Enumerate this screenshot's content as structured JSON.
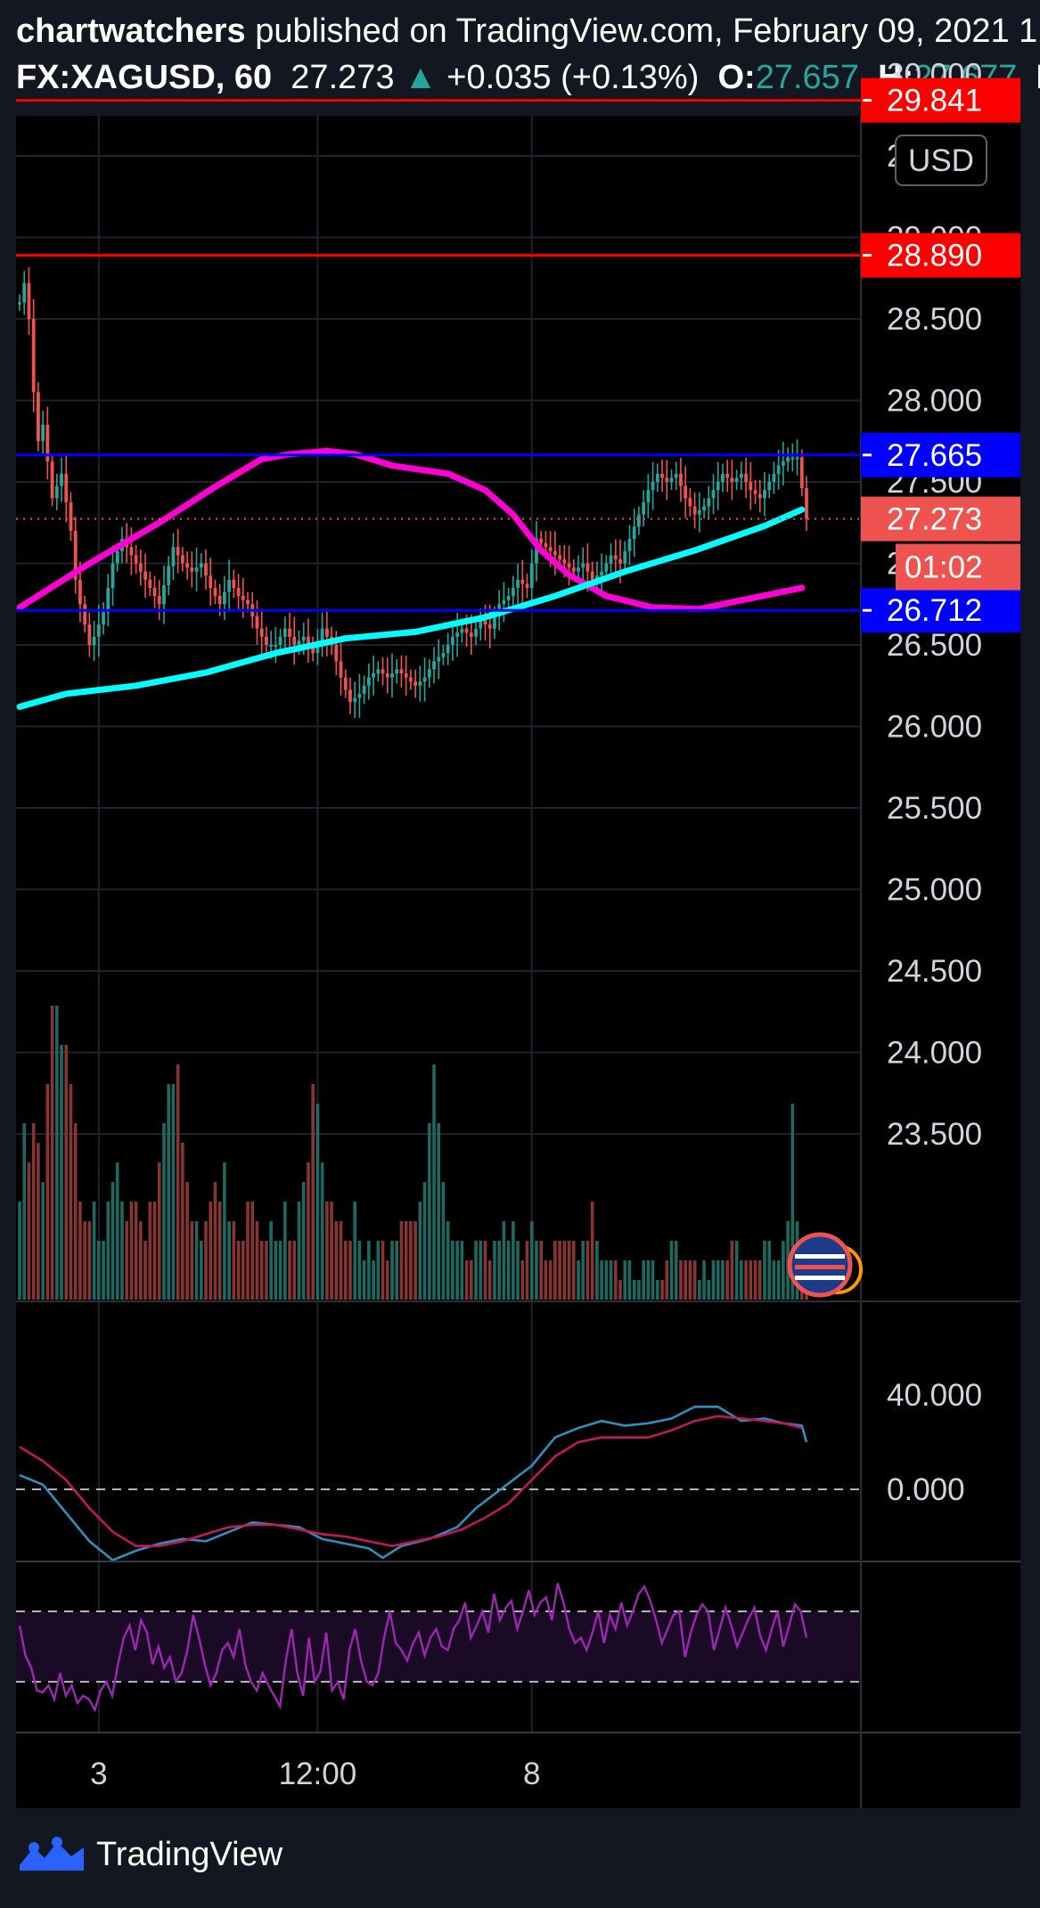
{
  "header": {
    "author": "chartwatchers",
    "published": "published on TradingView.com, February 09, 2021 1",
    "symbol": "FX:XAGUSD, 60",
    "last": "27.273",
    "change_arrow": "▲",
    "change": "+0.035 (+0.13%)",
    "o_label": "O:",
    "o_value": "27.657",
    "h_label": "H:",
    "h_value": "27.677",
    "l_label": "L:",
    "l_value": "2"
  },
  "currency_button": "USD",
  "footer": {
    "brand": "TradingView"
  },
  "colors": {
    "background": "#131722",
    "pane": "#000000",
    "up": "#26a69a",
    "down": "#ef5350",
    "resistance": "#ff0000",
    "support": "#0000ff",
    "ma_fast": "#ff00d4",
    "ma_slow": "#00ffff",
    "macd": "#2e8fbf",
    "signal": "#c2185b",
    "rsi": "#9c27b0"
  },
  "chart_data": [
    {
      "type": "candlestick",
      "symbol": "FX:XAGUSD",
      "interval": "60",
      "currency": "USD",
      "y_ticks": [
        "30.000",
        "29.500",
        "29.000",
        "28.500",
        "28.000",
        "27.500",
        "27.000",
        "26.500",
        "26.000",
        "25.500",
        "25.000",
        "24.500",
        "24.000",
        "23.500"
      ],
      "y_tick_values": [
        30.0,
        29.5,
        29.0,
        28.5,
        28.0,
        27.5,
        27.0,
        26.5,
        26.0,
        25.5,
        25.0,
        24.5,
        24.0,
        23.5
      ],
      "ylim": [
        23.5,
        30.2
      ],
      "x_ticks": [
        "3",
        "12:00",
        "8"
      ],
      "x_tick_values": [
        17,
        64,
        110
      ],
      "bars": 170,
      "close_path": [
        [
          0,
          28.6
        ],
        [
          1,
          28.72
        ],
        [
          2,
          28.5
        ],
        [
          3,
          28.05
        ],
        [
          4,
          27.75
        ],
        [
          5,
          27.85
        ],
        [
          7,
          27.4
        ],
        [
          9,
          27.55
        ],
        [
          11,
          27.2
        ],
        [
          12,
          26.9
        ],
        [
          13,
          26.75
        ],
        [
          15,
          26.5
        ],
        [
          16,
          26.55
        ],
        [
          18,
          26.7
        ],
        [
          20,
          27.0
        ],
        [
          22,
          27.15
        ],
        [
          24,
          27.05
        ],
        [
          26,
          26.95
        ],
        [
          28,
          26.85
        ],
        [
          30,
          26.75
        ],
        [
          33,
          27.1
        ],
        [
          35,
          27.0
        ],
        [
          37,
          26.95
        ],
        [
          39,
          27.0
        ],
        [
          41,
          26.85
        ],
        [
          43,
          26.75
        ],
        [
          45,
          26.9
        ],
        [
          47,
          26.8
        ],
        [
          49,
          26.75
        ],
        [
          51,
          26.6
        ],
        [
          53,
          26.5
        ],
        [
          55,
          26.5
        ],
        [
          57,
          26.6
        ],
        [
          59,
          26.5
        ],
        [
          61,
          26.55
        ],
        [
          63,
          26.45
        ],
        [
          65,
          26.6
        ],
        [
          67,
          26.5
        ],
        [
          69,
          26.3
        ],
        [
          71,
          26.15
        ],
        [
          73,
          26.2
        ],
        [
          75,
          26.3
        ],
        [
          77,
          26.35
        ],
        [
          79,
          26.3
        ],
        [
          81,
          26.35
        ],
        [
          83,
          26.3
        ],
        [
          85,
          26.25
        ],
        [
          87,
          26.3
        ],
        [
          89,
          26.4
        ],
        [
          91,
          26.45
        ],
        [
          93,
          26.55
        ],
        [
          95,
          26.6
        ],
        [
          97,
          26.55
        ],
        [
          99,
          26.65
        ],
        [
          101,
          26.6
        ],
        [
          103,
          26.75
        ],
        [
          105,
          26.8
        ],
        [
          107,
          26.9
        ],
        [
          109,
          26.85
        ],
        [
          111,
          27.15
        ],
        [
          113,
          27.1
        ],
        [
          115,
          27.05
        ],
        [
          117,
          27.0
        ],
        [
          119,
          26.95
        ],
        [
          121,
          27.0
        ],
        [
          123,
          26.9
        ],
        [
          125,
          26.95
        ],
        [
          127,
          27.05
        ],
        [
          129,
          27.0
        ],
        [
          131,
          27.15
        ],
        [
          133,
          27.3
        ],
        [
          135,
          27.45
        ],
        [
          137,
          27.55
        ],
        [
          139,
          27.5
        ],
        [
          141,
          27.55
        ],
        [
          143,
          27.4
        ],
        [
          145,
          27.3
        ],
        [
          147,
          27.35
        ],
        [
          149,
          27.45
        ],
        [
          151,
          27.55
        ],
        [
          153,
          27.5
        ],
        [
          155,
          27.55
        ],
        [
          157,
          27.45
        ],
        [
          159,
          27.4
        ],
        [
          161,
          27.5
        ],
        [
          163,
          27.6
        ],
        [
          165,
          27.65
        ],
        [
          167,
          27.65
        ],
        [
          169,
          27.273
        ]
      ],
      "horizontal_levels": [
        {
          "label": "29.841",
          "value": 29.841,
          "color": "#ff0000"
        },
        {
          "label": "28.890",
          "value": 28.89,
          "color": "#ff0000"
        },
        {
          "label": "27.665",
          "value": 27.665,
          "color": "#0000ff"
        },
        {
          "label": "26.712",
          "value": 26.712,
          "color": "#0000ff"
        }
      ],
      "last_price": {
        "label": "27.273",
        "value": 27.273,
        "countdown": "01:02"
      },
      "moving_averages": [
        {
          "color": "#ff00d4",
          "points": [
            [
              0,
              26.73
            ],
            [
              15,
              27.0
            ],
            [
              30,
              27.25
            ],
            [
              42,
              27.47
            ],
            [
              52,
              27.64
            ],
            [
              58,
              27.67
            ],
            [
              66,
              27.69
            ],
            [
              72,
              27.67
            ],
            [
              80,
              27.6
            ],
            [
              92,
              27.55
            ],
            [
              100,
              27.45
            ],
            [
              106,
              27.3
            ],
            [
              112,
              27.08
            ],
            [
              118,
              26.93
            ],
            [
              126,
              26.8
            ],
            [
              136,
              26.73
            ],
            [
              146,
              26.72
            ],
            [
              156,
              26.78
            ],
            [
              168,
              26.85
            ]
          ]
        },
        {
          "color": "#00ffff",
          "points": [
            [
              0,
              26.12
            ],
            [
              10,
              26.2
            ],
            [
              25,
              26.25
            ],
            [
              40,
              26.33
            ],
            [
              55,
              26.45
            ],
            [
              70,
              26.54
            ],
            [
              85,
              26.58
            ],
            [
              100,
              26.67
            ],
            [
              115,
              26.8
            ],
            [
              130,
              26.95
            ],
            [
              145,
              27.08
            ],
            [
              160,
              27.23
            ],
            [
              168,
              27.33
            ]
          ]
        }
      ]
    },
    {
      "type": "bar",
      "name": "volume",
      "values": [
        5,
        9,
        7,
        9,
        8,
        6,
        11,
        15,
        15,
        13,
        13,
        11,
        9,
        5,
        4,
        4,
        5,
        3,
        3,
        5,
        6,
        7,
        5,
        4,
        5,
        5,
        4,
        3,
        5,
        5,
        7,
        9,
        11,
        11,
        12,
        8,
        6,
        4,
        4,
        3,
        4,
        5,
        6,
        5,
        7,
        4,
        4,
        3,
        3,
        5,
        5,
        4,
        3,
        3,
        4,
        3,
        3,
        5,
        3,
        3,
        5,
        6,
        7,
        11,
        10,
        7,
        5,
        5,
        4,
        4,
        3,
        3,
        5,
        3,
        2,
        3,
        2,
        3,
        3,
        2,
        3,
        3,
        4,
        4,
        4,
        4,
        5,
        6,
        9,
        12,
        9,
        6,
        4,
        3,
        3,
        3,
        2,
        2,
        3,
        3,
        3,
        2,
        3,
        3,
        4,
        3,
        4,
        3,
        2,
        3,
        4,
        3,
        3,
        2,
        2,
        3,
        3,
        3,
        3,
        3,
        2,
        3,
        3,
        5,
        3,
        2,
        2,
        2,
        2,
        1,
        2,
        2,
        1,
        1,
        2,
        2,
        2,
        1,
        1,
        2,
        3,
        3,
        2,
        2,
        2,
        2,
        1,
        2,
        1,
        2,
        2,
        2,
        2,
        3,
        3,
        2,
        2,
        2,
        2,
        2,
        3,
        3,
        2,
        2,
        3,
        4,
        10,
        4,
        2,
        3
      ],
      "max_value": 15
    },
    {
      "type": "line",
      "name": "macd",
      "y_ticks": [
        "40.000",
        "0.000"
      ],
      "y_tick_values": [
        40,
        0
      ],
      "ylim": [
        -30,
        60
      ],
      "series": [
        {
          "color": "#2e8fbf",
          "points": [
            [
              0,
              6
            ],
            [
              5,
              2
            ],
            [
              10,
              -10
            ],
            [
              15,
              -22
            ],
            [
              20,
              -30
            ],
            [
              25,
              -26
            ],
            [
              30,
              -23
            ],
            [
              35,
              -21
            ],
            [
              40,
              -22
            ],
            [
              45,
              -18
            ],
            [
              50,
              -14
            ],
            [
              55,
              -15
            ],
            [
              60,
              -16
            ],
            [
              65,
              -21
            ],
            [
              70,
              -23
            ],
            [
              75,
              -25
            ],
            [
              78,
              -29
            ],
            [
              82,
              -24
            ],
            [
              88,
              -21
            ],
            [
              94,
              -16
            ],
            [
              98,
              -8
            ],
            [
              104,
              1
            ],
            [
              110,
              10
            ],
            [
              115,
              22
            ],
            [
              120,
              26
            ],
            [
              125,
              29
            ],
            [
              130,
              27
            ],
            [
              135,
              28
            ],
            [
              140,
              30
            ],
            [
              145,
              35
            ],
            [
              150,
              35
            ],
            [
              155,
              29
            ],
            [
              160,
              30
            ],
            [
              164,
              28
            ],
            [
              168,
              27
            ],
            [
              169,
              20
            ]
          ]
        },
        {
          "color": "#c2185b",
          "points": [
            [
              0,
              18
            ],
            [
              5,
              12
            ],
            [
              10,
              4
            ],
            [
              15,
              -8
            ],
            [
              20,
              -18
            ],
            [
              25,
              -24
            ],
            [
              30,
              -24
            ],
            [
              35,
              -22
            ],
            [
              40,
              -19
            ],
            [
              45,
              -16
            ],
            [
              50,
              -15
            ],
            [
              55,
              -15
            ],
            [
              60,
              -17
            ],
            [
              65,
              -19
            ],
            [
              70,
              -20
            ],
            [
              75,
              -22
            ],
            [
              80,
              -24
            ],
            [
              85,
              -22
            ],
            [
              90,
              -20
            ],
            [
              95,
              -17
            ],
            [
              100,
              -12
            ],
            [
              105,
              -6
            ],
            [
              110,
              4
            ],
            [
              115,
              14
            ],
            [
              120,
              20
            ],
            [
              125,
              22
            ],
            [
              130,
              22
            ],
            [
              135,
              22
            ],
            [
              140,
              25
            ],
            [
              145,
              29
            ],
            [
              150,
              31
            ],
            [
              155,
              30
            ],
            [
              160,
              29
            ],
            [
              164,
              28
            ],
            [
              168,
              26
            ]
          ]
        }
      ]
    },
    {
      "type": "line",
      "name": "rsi",
      "color": "#9c27b0",
      "band": [
        30,
        70
      ],
      "ylim": [
        10,
        90
      ],
      "values": [
        62,
        45,
        38,
        25,
        24,
        28,
        20,
        35,
        22,
        28,
        18,
        22,
        20,
        14,
        25,
        30,
        22,
        40,
        55,
        62,
        48,
        65,
        58,
        40,
        50,
        38,
        44,
        30,
        35,
        48,
        68,
        55,
        40,
        28,
        35,
        48,
        52,
        44,
        60,
        40,
        30,
        25,
        35,
        28,
        22,
        16,
        42,
        60,
        35,
        22,
        55,
        30,
        36,
        58,
        25,
        30,
        20,
        48,
        60,
        42,
        30,
        28,
        35,
        55,
        70,
        52,
        48,
        42,
        52,
        58,
        45,
        55,
        60,
        50,
        48,
        60,
        65,
        75,
        55,
        62,
        70,
        58,
        80,
        65,
        72,
        76,
        60,
        70,
        82,
        68,
        75,
        78,
        65,
        86,
        75,
        60,
        52,
        55,
        48,
        58,
        70,
        52,
        68,
        60,
        75,
        62,
        70,
        80,
        84,
        76,
        65,
        52,
        60,
        68,
        70,
        44,
        58,
        68,
        74,
        70,
        48,
        60,
        72,
        62,
        50,
        58,
        66,
        72,
        56,
        48,
        60,
        70,
        50,
        62,
        74,
        70,
        55
      ]
    }
  ]
}
